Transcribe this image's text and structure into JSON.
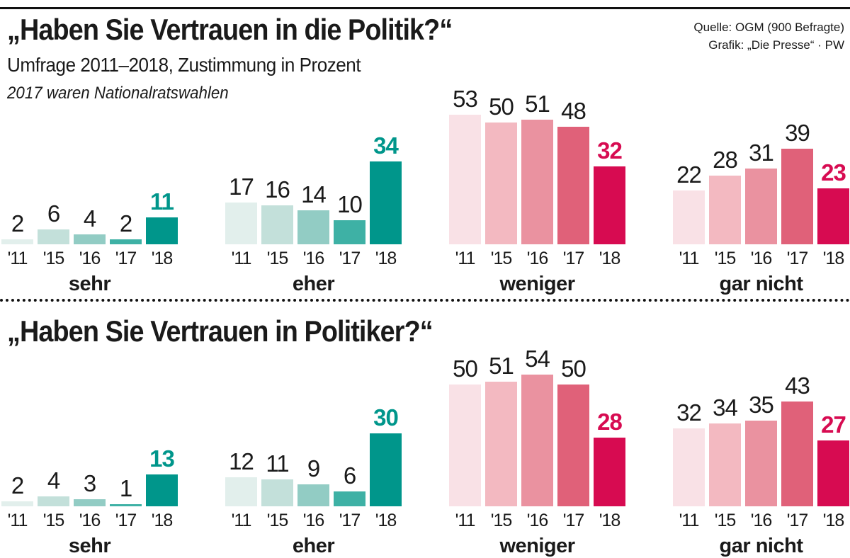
{
  "meta": {
    "source_line1": "Quelle: OGM (900 Befragte)",
    "source_line2": "Grafik: „Die Presse“ · PW"
  },
  "header": {
    "subtitle": "Umfrage 2011–2018, Zustimmung in Prozent",
    "note": "2017 waren Nationalratswahlen"
  },
  "colors": {
    "teal": [
      "#e2efec",
      "#c3e0da",
      "#92ccc4",
      "#3eb1a5",
      "#00968b"
    ],
    "pink": [
      "#f9e1e6",
      "#f3b9c1",
      "#ea92a0",
      "#e06179",
      "#d70b51"
    ],
    "teal_highlight": "#00968b",
    "pink_highlight": "#d70b51",
    "text": "#1a1a1a"
  },
  "chart_data": [
    {
      "type": "bar",
      "title": "„Haben Sie Vertrauen in die Politik?“",
      "unit": "Prozent (Zustimmung)",
      "categories": [
        "'11",
        "'15",
        "'16",
        "'17",
        "'18"
      ],
      "highlighted_category": "'18",
      "groups": [
        {
          "label": "sehr",
          "palette": "teal",
          "values": [
            2,
            6,
            4,
            2,
            11
          ]
        },
        {
          "label": "eher",
          "palette": "teal",
          "values": [
            17,
            16,
            14,
            10,
            34
          ]
        },
        {
          "label": "weniger",
          "palette": "pink",
          "values": [
            53,
            50,
            51,
            48,
            32
          ]
        },
        {
          "label": "gar nicht",
          "palette": "pink",
          "values": [
            22,
            28,
            31,
            39,
            23
          ]
        }
      ]
    },
    {
      "type": "bar",
      "title": "„Haben Sie Vertrauen in Politiker?“",
      "unit": "Prozent (Zustimmung)",
      "categories": [
        "'11",
        "'15",
        "'16",
        "'17",
        "'18"
      ],
      "highlighted_category": "'18",
      "groups": [
        {
          "label": "sehr",
          "palette": "teal",
          "values": [
            2,
            4,
            3,
            1,
            13
          ]
        },
        {
          "label": "eher",
          "palette": "teal",
          "values": [
            12,
            11,
            9,
            6,
            30
          ]
        },
        {
          "label": "weniger",
          "palette": "pink",
          "values": [
            50,
            51,
            54,
            50,
            28
          ]
        },
        {
          "label": "gar nicht",
          "palette": "pink",
          "values": [
            32,
            34,
            35,
            43,
            27
          ]
        }
      ]
    }
  ]
}
